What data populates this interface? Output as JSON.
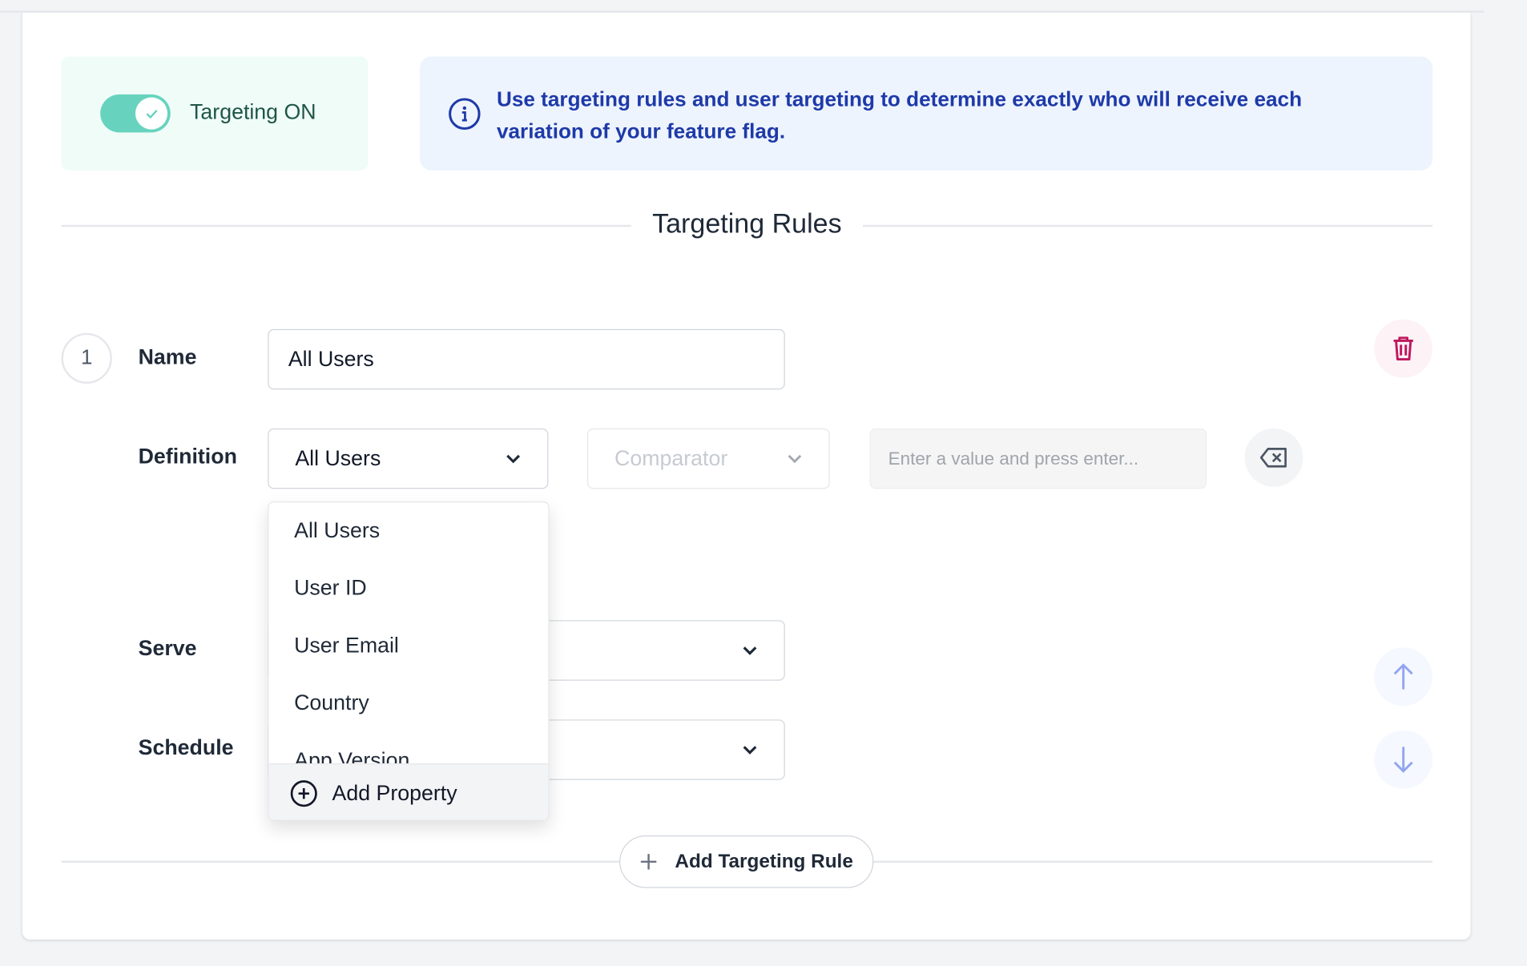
{
  "targeting_toggle": {
    "label": "Targeting ON",
    "on": true,
    "color": "#67d3be"
  },
  "info_banner": {
    "text": "Use targeting rules and user targeting to determine exactly who will receive each variation of your feature flag.",
    "icon": "info-icon"
  },
  "section_title": "Targeting Rules",
  "rule": {
    "number": "1",
    "name_label": "Name",
    "name_value": "All Users",
    "definition_label": "Definition",
    "definition_value": "All Users",
    "comparator_placeholder": "Comparator",
    "value_placeholder": "Enter a value and press enter...",
    "serve_label": "Serve",
    "schedule_label": "Schedule"
  },
  "definition_dropdown": {
    "options": [
      "All Users",
      "User ID",
      "User Email",
      "Country",
      "App Version"
    ],
    "footer_label": "Add Property"
  },
  "add_rule_label": "Add Targeting Rule"
}
